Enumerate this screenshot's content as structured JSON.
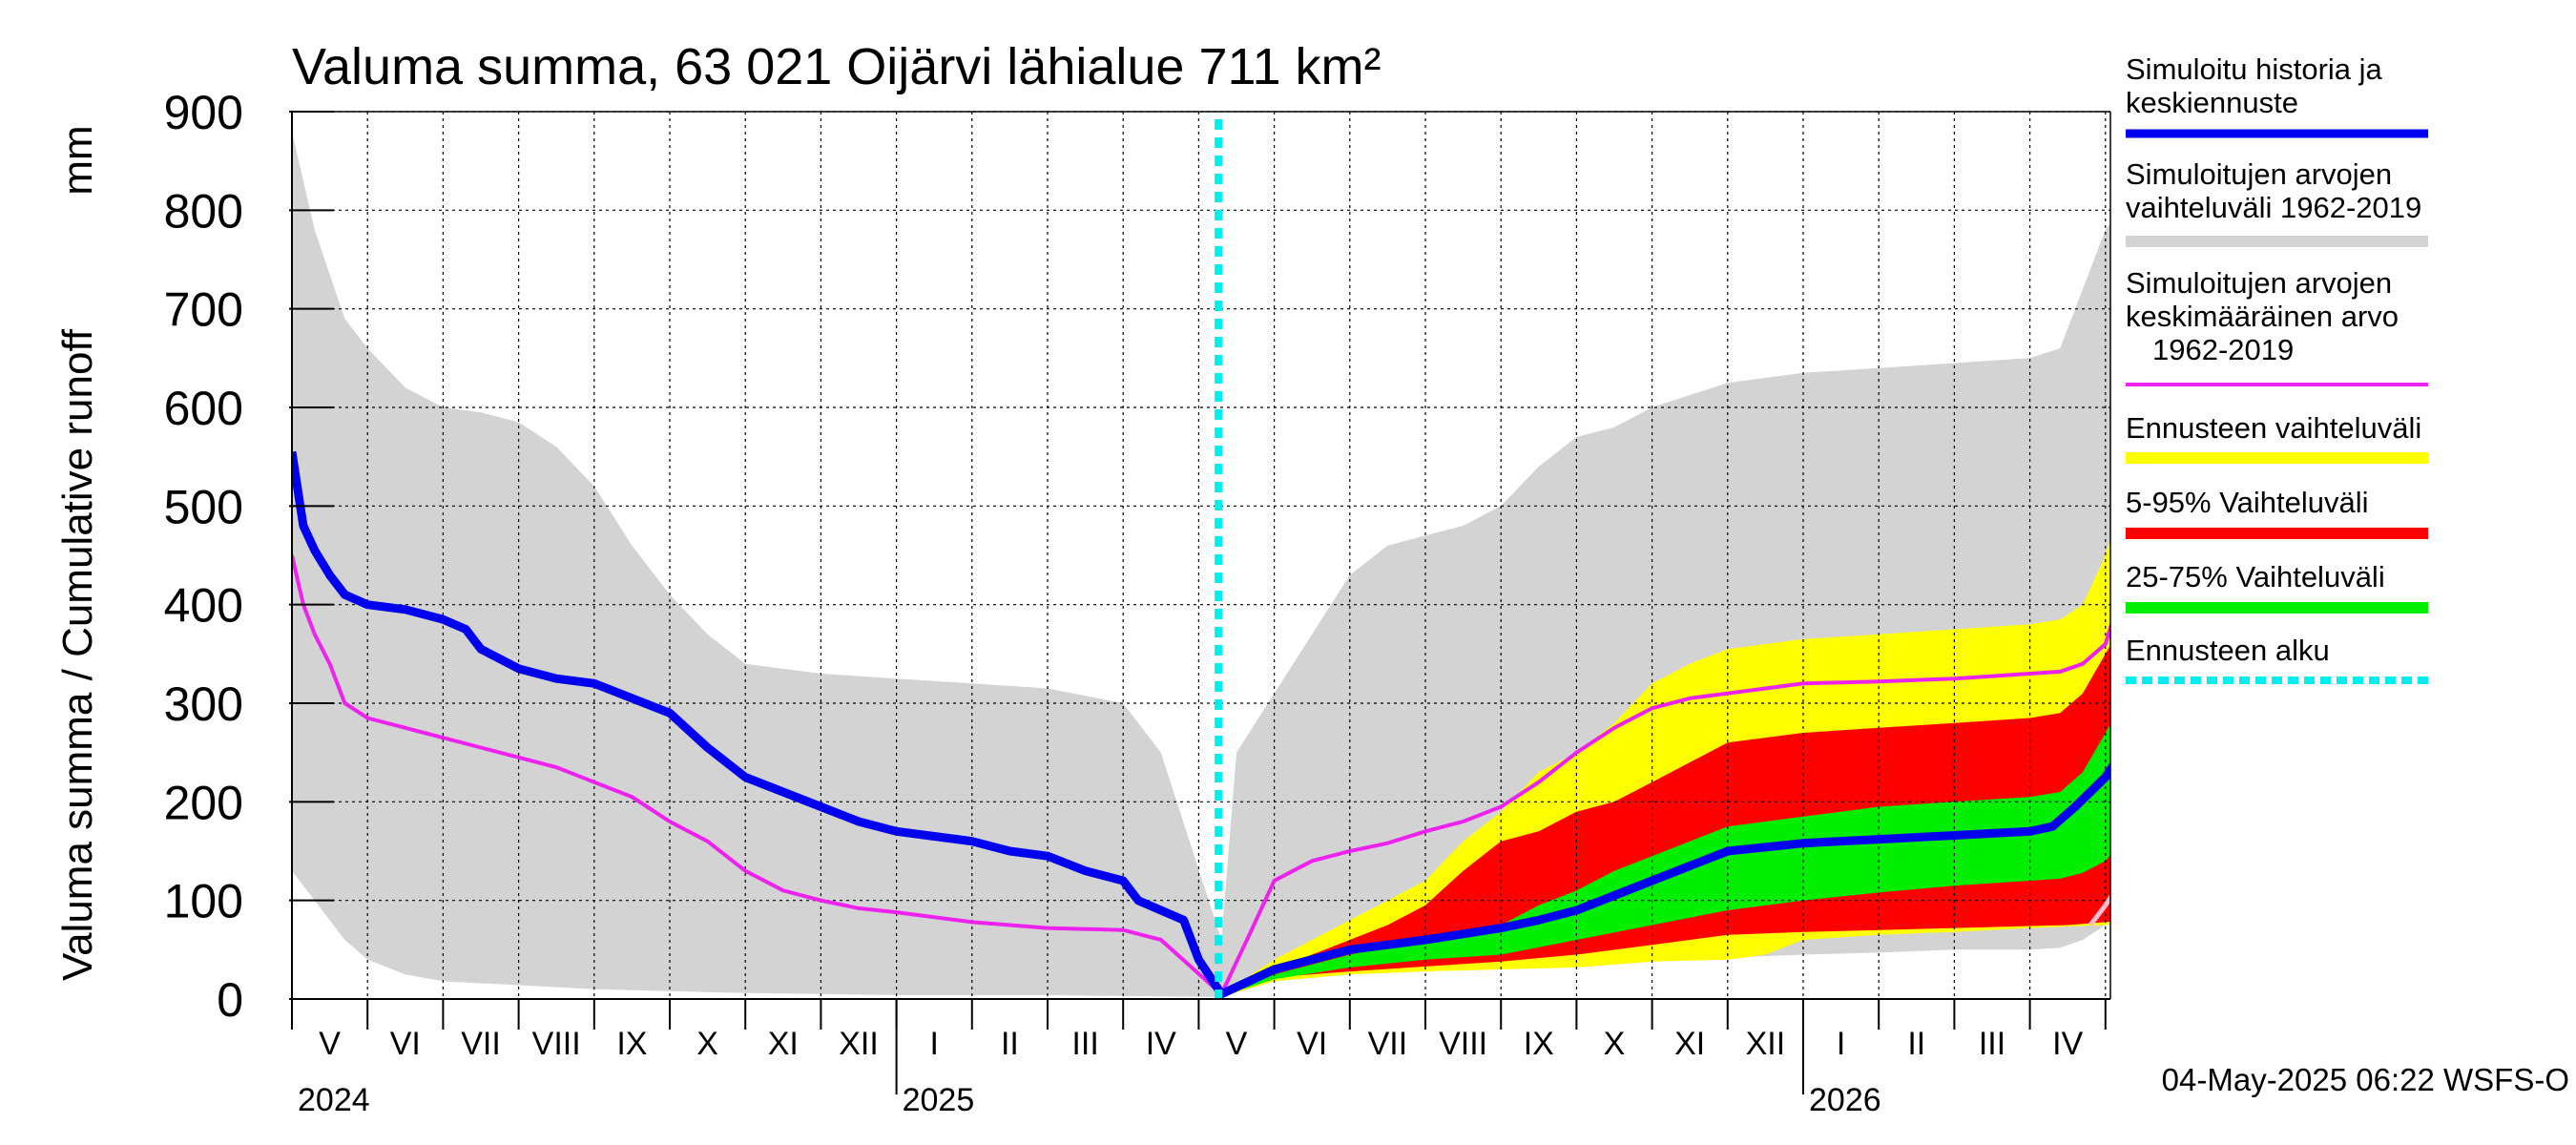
{
  "chart_data": {
    "type": "area",
    "title": "Valuma summa, 63 021 Oijärvi lähialue 711 km²",
    "ylabel": "Valuma summa / Cumulative runoff",
    "yunit": "mm",
    "ylim": [
      0,
      900
    ],
    "yticks": [
      0,
      100,
      200,
      300,
      400,
      500,
      600,
      700,
      800,
      900
    ],
    "x_axis": {
      "start": "2024-04-20",
      "end": "2026-05-10",
      "month_labels": [
        "V",
        "VI",
        "VII",
        "VIII",
        "IX",
        "X",
        "XI",
        "XII",
        "I",
        "II",
        "III",
        "IV",
        "V",
        "VI",
        "VII",
        "VIII",
        "IX",
        "X",
        "XI",
        "XII",
        "I",
        "II",
        "III",
        "IV"
      ],
      "year_labels": [
        {
          "label": "2024",
          "month_index": 0
        },
        {
          "label": "2025",
          "month_index": 8
        },
        {
          "label": "2026",
          "month_index": 20
        }
      ]
    },
    "forecast_start": "2025-05-04",
    "legend_position": "right",
    "legend": [
      {
        "id": "history",
        "lines": [
          "Simuloitu historia ja",
          "keskiennuste"
        ],
        "color": "#0000ee"
      },
      {
        "id": "range",
        "lines": [
          "Simuloitujen arvojen",
          "vaihteluväli 1962-2019"
        ],
        "color": "#d3d3d3"
      },
      {
        "id": "mean",
        "lines": [
          "Simuloitujen arvojen",
          "keskimääräinen arvo",
          "1962-2019"
        ],
        "color": "#ee22ee"
      },
      {
        "id": "fc_range",
        "lines": [
          "Ennusteen vaihteluväli"
        ],
        "color": "#ffff00"
      },
      {
        "id": "p5_95",
        "lines": [
          "5-95% Vaihteluväli"
        ],
        "color": "#ff0000"
      },
      {
        "id": "p25_75",
        "lines": [
          "25-75% Vaihteluväli"
        ],
        "color": "#00ee00"
      },
      {
        "id": "fc_start",
        "lines": [
          "Ennusteen alku"
        ],
        "color": "#00eeee"
      }
    ],
    "series": [
      {
        "name": "hist_range_max",
        "x": [
          0,
          0.3,
          0.7,
          1.0,
          1.5,
          2.0,
          2.5,
          3.0,
          3.5,
          4.0,
          4.5,
          5.0,
          5.5,
          6.0,
          7.0,
          8.0,
          9.0,
          10.0,
          11.0,
          11.5,
          12.3,
          12.5,
          13.0,
          13.5,
          14.0,
          14.5,
          15.0,
          15.5,
          16.0,
          16.5,
          17.0,
          17.5,
          18.0,
          19.0,
          20.0,
          21.0,
          22.0,
          23.0,
          23.4,
          23.7,
          24.0,
          24.3
        ],
        "y": [
          880,
          780,
          690,
          660,
          620,
          600,
          595,
          585,
          560,
          520,
          460,
          410,
          370,
          340,
          330,
          325,
          320,
          315,
          300,
          250,
          60,
          250,
          310,
          370,
          430,
          460,
          470,
          480,
          500,
          540,
          570,
          580,
          600,
          625,
          635,
          640,
          645,
          650,
          660,
          720,
          780,
          810
        ]
      },
      {
        "name": "hist_range_min",
        "x": [
          0,
          0.3,
          0.7,
          1.0,
          1.5,
          2.0,
          3.0,
          4.0,
          5.0,
          6.0,
          7.0,
          8.0,
          9.0,
          10.0,
          11.0,
          12.3,
          13.0,
          14.0,
          15.0,
          16.0,
          17.0,
          18.0,
          19.0,
          20.0,
          21.0,
          22.0,
          23.0,
          23.4,
          23.7,
          24.0,
          24.3
        ],
        "y": [
          130,
          100,
          60,
          40,
          25,
          18,
          14,
          10,
          8,
          6,
          5,
          4,
          4,
          4,
          3,
          2,
          18,
          25,
          30,
          35,
          38,
          40,
          42,
          45,
          47,
          50,
          50,
          52,
          60,
          75,
          80
        ]
      },
      {
        "name": "history_median",
        "x": [
          0,
          0.15,
          0.3,
          0.5,
          0.7,
          1.0,
          1.5,
          2.0,
          2.3,
          2.5,
          3.0,
          3.5,
          4.0,
          4.5,
          5.0,
          5.5,
          6.0,
          6.5,
          7.0,
          7.5,
          8.0,
          8.5,
          9.0,
          9.5,
          10.0,
          10.5,
          11.0,
          11.2,
          11.5,
          11.8,
          12.0,
          12.3,
          13.0,
          14.0,
          15.0,
          16.0,
          16.5,
          17.0,
          17.5,
          18.0,
          18.5,
          19.0,
          20.0,
          21.0,
          22.0,
          23.0,
          23.3,
          23.6,
          24.0,
          24.3
        ],
        "y": [
          555,
          480,
          455,
          430,
          410,
          400,
          395,
          385,
          375,
          355,
          335,
          325,
          320,
          305,
          290,
          255,
          225,
          210,
          195,
          180,
          170,
          165,
          160,
          150,
          145,
          130,
          120,
          100,
          90,
          80,
          40,
          5,
          30,
          50,
          60,
          72,
          80,
          90,
          105,
          120,
          135,
          150,
          158,
          162,
          166,
          170,
          175,
          195,
          225,
          260
        ]
      },
      {
        "name": "mean",
        "x": [
          0,
          0.15,
          0.3,
          0.5,
          0.7,
          1.0,
          1.5,
          2.0,
          2.5,
          3.0,
          3.5,
          4.0,
          4.5,
          5.0,
          5.5,
          6.0,
          6.5,
          7.0,
          7.5,
          8.0,
          9.0,
          10.0,
          11.0,
          11.5,
          12.3,
          12.7,
          13.0,
          13.5,
          14.0,
          14.5,
          15.0,
          15.5,
          16.0,
          16.5,
          17.0,
          17.5,
          18.0,
          18.5,
          19.0,
          19.5,
          20.0,
          21.0,
          22.0,
          23.0,
          23.4,
          23.7,
          24.0,
          24.3
        ],
        "y": [
          450,
          400,
          370,
          340,
          300,
          285,
          275,
          265,
          255,
          245,
          235,
          220,
          205,
          180,
          160,
          130,
          110,
          100,
          92,
          88,
          78,
          72,
          70,
          60,
          5,
          70,
          120,
          140,
          150,
          158,
          170,
          180,
          195,
          220,
          250,
          275,
          295,
          305,
          310,
          315,
          320,
          322,
          325,
          330,
          332,
          340,
          360,
          435
        ]
      },
      {
        "name": "fc_range_max",
        "x": [
          12.3,
          13.0,
          13.5,
          14.0,
          14.5,
          15.0,
          15.5,
          16.0,
          16.5,
          17.0,
          17.5,
          18.0,
          18.5,
          19.0,
          20.0,
          21.0,
          22.0,
          23.0,
          23.4,
          23.7,
          24.0,
          24.3
        ],
        "y": [
          5,
          40,
          60,
          80,
          100,
          120,
          160,
          190,
          230,
          250,
          280,
          320,
          340,
          355,
          365,
          370,
          375,
          380,
          385,
          400,
          450,
          525
        ]
      },
      {
        "name": "fc_range_min",
        "x": [
          12.3,
          13.0,
          14.0,
          15.0,
          16.0,
          17.0,
          18.0,
          19.0,
          19.5,
          20.0,
          21.0,
          22.0,
          23.0,
          24.0,
          24.3
        ],
        "y": [
          2,
          18,
          25,
          28,
          30,
          32,
          38,
          40,
          45,
          60,
          65,
          68,
          72,
          75,
          78
        ]
      },
      {
        "name": "p5_95_max",
        "x": [
          12.3,
          13.0,
          13.5,
          14.0,
          14.5,
          15.0,
          15.5,
          16.0,
          16.5,
          17.0,
          17.5,
          18.0,
          18.5,
          19.0,
          20.0,
          21.0,
          22.0,
          23.0,
          23.4,
          23.7,
          24.0,
          24.3
        ],
        "y": [
          4,
          30,
          45,
          60,
          75,
          95,
          130,
          160,
          170,
          190,
          200,
          220,
          240,
          260,
          270,
          275,
          280,
          285,
          290,
          310,
          350,
          390
        ]
      },
      {
        "name": "p5_95_min",
        "x": [
          12.3,
          13.0,
          14.0,
          15.0,
          16.0,
          17.0,
          18.0,
          19.0,
          20.0,
          21.0,
          22.0,
          23.0,
          23.5,
          24.0,
          24.3
        ],
        "y": [
          3,
          22,
          28,
          33,
          38,
          45,
          55,
          65,
          68,
          70,
          72,
          74,
          75,
          78,
          80
        ]
      },
      {
        "name": "p25_75_max",
        "x": [
          12.3,
          13.0,
          14.0,
          15.0,
          15.5,
          16.0,
          16.5,
          17.0,
          17.5,
          18.0,
          18.5,
          19.0,
          20.0,
          21.0,
          22.0,
          23.0,
          23.4,
          23.7,
          24.0,
          24.3
        ],
        "y": [
          4,
          25,
          45,
          60,
          65,
          75,
          95,
          110,
          130,
          145,
          160,
          175,
          185,
          195,
          200,
          205,
          210,
          230,
          270,
          310
        ]
      },
      {
        "name": "p25_75_min",
        "x": [
          12.3,
          13.0,
          14.0,
          15.0,
          16.0,
          17.0,
          18.0,
          19.0,
          20.0,
          21.0,
          22.0,
          23.0,
          23.4,
          23.7,
          24.0,
          24.3
        ],
        "y": [
          3,
          20,
          32,
          40,
          45,
          60,
          75,
          90,
          100,
          108,
          115,
          120,
          122,
          128,
          140,
          165
        ]
      },
      {
        "name": "pink_tail",
        "x": [
          23.8,
          24.0,
          24.3
        ],
        "y": [
          75,
          95,
          130
        ]
      }
    ]
  },
  "footer": {
    "timestamp": "04-May-2025 06:22 WSFS-O"
  }
}
